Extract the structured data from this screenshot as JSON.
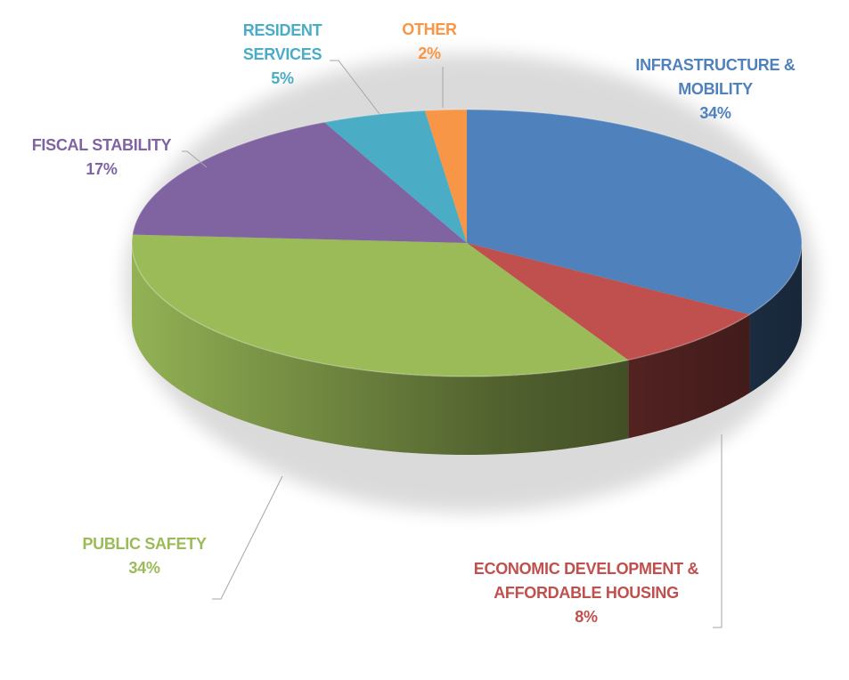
{
  "chart_data": {
    "type": "pie",
    "style": "3d",
    "title": "",
    "legend": "none",
    "slices": [
      {
        "name": "INFRASTRUCTURE & MOBILITY",
        "label_lines": [
          "INFRASTRUCTURE &",
          "MOBILITY"
        ],
        "value": 34,
        "value_label": "34%",
        "color": "#4f81bd"
      },
      {
        "name": "ECONOMIC DEVELOPMENT & AFFORDABLE HOUSING",
        "label_lines": [
          "ECONOMIC DEVELOPMENT &",
          "AFFORDABLE HOUSING"
        ],
        "value": 8,
        "value_label": "8%",
        "color": "#c0504d"
      },
      {
        "name": "PUBLIC SAFETY",
        "label_lines": [
          "PUBLIC SAFETY"
        ],
        "value": 34,
        "value_label": "34%",
        "color": "#9bbb59"
      },
      {
        "name": "FISCAL STABILITY",
        "label_lines": [
          "FISCAL STABILITY"
        ],
        "value": 17,
        "value_label": "17%",
        "color": "#8064a2"
      },
      {
        "name": "RESIDENT SERVICES",
        "label_lines": [
          "RESIDENT",
          "SERVICES"
        ],
        "value": 5,
        "value_label": "5%",
        "color": "#4bacc6"
      },
      {
        "name": "OTHER",
        "label_lines": [
          "OTHER"
        ],
        "value": 2,
        "value_label": "2%",
        "color": "#f79646"
      }
    ]
  }
}
